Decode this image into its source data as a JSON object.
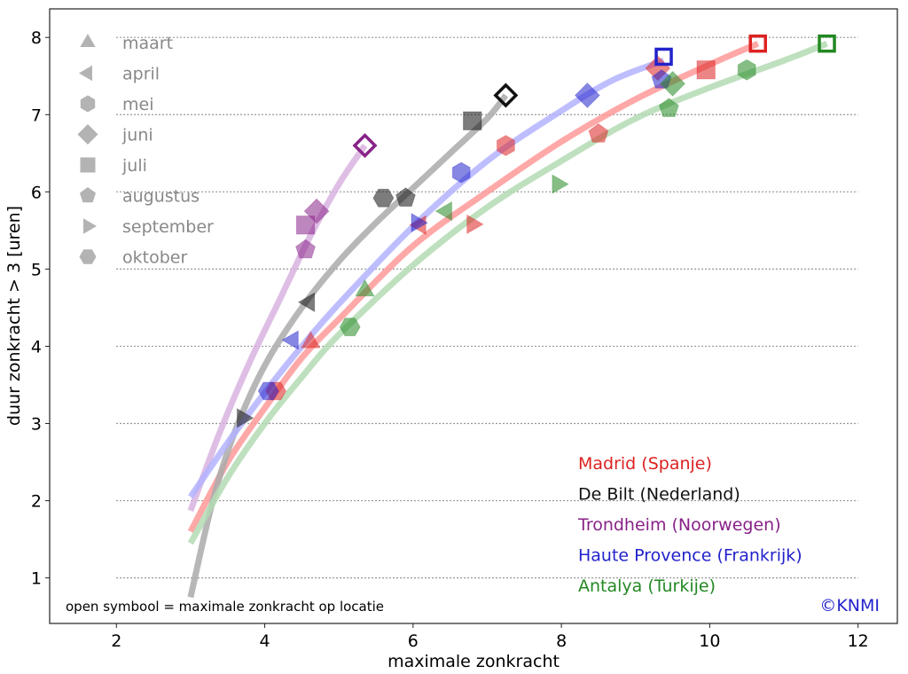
{
  "chart_data": {
    "type": "scatter",
    "title": "",
    "xlabel": "maximale zonkracht",
    "ylabel": "duur zonkracht > 3 [uren]",
    "xlim": [
      1.1,
      12.53
    ],
    "ylim": [
      0.41,
      8.37
    ],
    "xticks": [
      2,
      4,
      6,
      8,
      10,
      12
    ],
    "yticks": [
      1,
      2,
      3,
      4,
      5,
      6,
      7,
      8
    ],
    "grid": "horizontal dotted",
    "month_legend": {
      "placement": "top-left",
      "entries": [
        {
          "label": "maart",
          "marker": "triangle-up"
        },
        {
          "label": "april",
          "marker": "triangle-left"
        },
        {
          "label": "mei",
          "marker": "hexagon"
        },
        {
          "label": "juni",
          "marker": "diamond"
        },
        {
          "label": "juli",
          "marker": "square"
        },
        {
          "label": "augustus",
          "marker": "pentagon"
        },
        {
          "label": "september",
          "marker": "triangle-right"
        },
        {
          "label": "oktober",
          "marker": "hexagon-flat"
        }
      ],
      "color": "#999999"
    },
    "location_legend": {
      "placement": "bottom-right"
    },
    "note": "open symbool = maximale zonkracht op locatie",
    "credit": "©KNMI",
    "credit_color": "#2222cc",
    "series": [
      {
        "name": "Madrid (Spanje)",
        "color": "#dd2222",
        "curve_color": "#ff9999",
        "curve": {
          "x": [
            3.0,
            3.5,
            4.0,
            4.5,
            5.0,
            6.0,
            7.0,
            8.0,
            9.0,
            10.0,
            10.65
          ],
          "y": [
            1.6,
            2.5,
            3.2,
            3.85,
            4.35,
            5.3,
            6.0,
            6.65,
            7.2,
            7.65,
            7.92
          ]
        },
        "points": [
          {
            "month": "maart",
            "x": 4.62,
            "y": 4.05
          },
          {
            "month": "april",
            "x": 6.1,
            "y": 5.57
          },
          {
            "month": "mei",
            "x": 7.25,
            "y": 6.6
          },
          {
            "month": "juni",
            "x": 9.3,
            "y": 7.6
          },
          {
            "month": "juli",
            "x": 9.95,
            "y": 7.58
          },
          {
            "month": "augustus",
            "x": 8.5,
            "y": 6.75
          },
          {
            "month": "september",
            "x": 6.8,
            "y": 5.58
          },
          {
            "month": "oktober",
            "x": 4.15,
            "y": 3.42
          }
        ],
        "max": {
          "x": 10.65,
          "y": 7.92,
          "marker": "square"
        }
      },
      {
        "name": "De Bilt (Nederland)",
        "color": "#111111",
        "curve_color": "#aaaaaa",
        "curve": {
          "x": [
            3.0,
            3.3,
            3.6,
            4.0,
            4.5,
            5.0,
            5.5,
            6.0,
            6.5,
            7.0,
            7.25
          ],
          "y": [
            0.75,
            2.0,
            2.9,
            3.75,
            4.5,
            5.1,
            5.6,
            6.05,
            6.5,
            6.95,
            7.25
          ]
        },
        "points": [
          {
            "month": "april",
            "x": 4.6,
            "y": 4.57
          },
          {
            "month": "juli",
            "x": 6.8,
            "y": 6.92
          },
          {
            "month": "augustus",
            "x": 5.9,
            "y": 5.92
          },
          {
            "month": "september",
            "x": 3.7,
            "y": 3.07
          },
          {
            "month": "oktober",
            "x": 5.6,
            "y": 5.92
          }
        ],
        "max": {
          "x": 7.25,
          "y": 7.25,
          "marker": "diamond"
        }
      },
      {
        "name": "Trondheim (Noorwegen)",
        "color": "#882288",
        "curve_color": "#d9b3e0",
        "curve": {
          "x": [
            3.0,
            3.4,
            3.8,
            4.2,
            4.6,
            5.0,
            5.35
          ],
          "y": [
            1.87,
            2.9,
            3.8,
            4.6,
            5.4,
            6.1,
            6.6
          ]
        },
        "points": [
          {
            "month": "juni",
            "x": 4.7,
            "y": 5.75
          },
          {
            "month": "juli",
            "x": 4.55,
            "y": 5.57
          },
          {
            "month": "augustus",
            "x": 4.55,
            "y": 5.25
          }
        ],
        "max": {
          "x": 5.35,
          "y": 6.6,
          "marker": "diamond"
        }
      },
      {
        "name": "Haute Provence (Frankrijk)",
        "color": "#2222cc",
        "curve_color": "#b3b3ff",
        "curve": {
          "x": [
            3.0,
            3.5,
            4.0,
            4.5,
            5.0,
            6.0,
            7.0,
            8.0,
            8.7,
            9.38
          ],
          "y": [
            2.05,
            2.75,
            3.4,
            4.0,
            4.55,
            5.55,
            6.4,
            7.05,
            7.45,
            7.7
          ]
        },
        "points": [
          {
            "month": "april",
            "x": 4.38,
            "y": 4.08
          },
          {
            "month": "mei",
            "x": 6.65,
            "y": 6.25
          },
          {
            "month": "juni",
            "x": 8.35,
            "y": 7.25
          },
          {
            "month": "augustus",
            "x": 9.35,
            "y": 7.45
          },
          {
            "month": "september",
            "x": 6.05,
            "y": 5.6
          },
          {
            "month": "oktober",
            "x": 4.05,
            "y": 3.42
          }
        ],
        "max": {
          "x": 9.38,
          "y": 7.75,
          "marker": "square"
        }
      },
      {
        "name": "Antalya (Turkije)",
        "color": "#228822",
        "curve_color": "#b3dbb3",
        "curve": {
          "x": [
            3.0,
            3.5,
            4.0,
            4.5,
            5.0,
            6.0,
            7.0,
            8.0,
            9.0,
            10.0,
            11.0,
            11.58
          ],
          "y": [
            1.45,
            2.3,
            3.0,
            3.6,
            4.15,
            5.05,
            5.8,
            6.4,
            6.95,
            7.35,
            7.7,
            7.92
          ]
        },
        "points": [
          {
            "month": "maart",
            "x": 5.35,
            "y": 4.72
          },
          {
            "month": "april",
            "x": 6.45,
            "y": 5.75
          },
          {
            "month": "mei",
            "x": 10.5,
            "y": 7.58
          },
          {
            "month": "juni",
            "x": 9.5,
            "y": 7.4
          },
          {
            "month": "augustus",
            "x": 9.45,
            "y": 7.08
          },
          {
            "month": "september",
            "x": 7.95,
            "y": 6.1
          },
          {
            "month": "oktober",
            "x": 5.15,
            "y": 4.25
          }
        ],
        "max": {
          "x": 11.58,
          "y": 7.92,
          "marker": "square"
        }
      }
    ]
  }
}
